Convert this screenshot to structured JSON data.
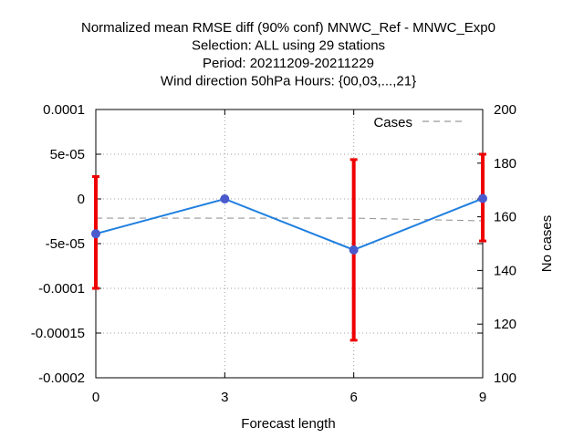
{
  "chart_data": {
    "type": "line",
    "title_lines": [
      "Normalized mean RMSE diff (90% conf) MNWC_Ref - MNWC_Exp0",
      "Selection: ALL using    29 stations",
      "Period: 20211209-20211229",
      "Wind direction 50hPa   Hours: {00,03,...,21}"
    ],
    "xlabel": "Forecast length",
    "ylabel": "",
    "y2label": "No cases",
    "x_ticks": [
      0,
      3,
      6,
      9
    ],
    "x_tick_labels": [
      "0",
      "3",
      "6",
      "9"
    ],
    "xlim": [
      0,
      9
    ],
    "ylim": [
      -0.0002,
      0.0001
    ],
    "y_ticks": [
      0.0001,
      5e-05,
      0,
      -5e-05,
      -0.0001,
      -0.00015,
      -0.0002
    ],
    "y_tick_labels": [
      "0.0001",
      "5e-05",
      "0",
      "-5e-05",
      "-0.0001",
      "-0.00015",
      "-0.0002"
    ],
    "y2lim": [
      100,
      200
    ],
    "y2_ticks": [
      200,
      180,
      160,
      140,
      120,
      100
    ],
    "y2_tick_labels": [
      "200",
      "180",
      "160",
      "140",
      "120",
      "100"
    ],
    "grid": true,
    "legend_position": "top-right",
    "series": [
      {
        "axis": "left",
        "color": "#1f7fe0",
        "marker_color": "#4a5acd",
        "x": [
          0,
          3,
          6,
          9
        ],
        "values": [
          -3.9e-05,
          0.0,
          -5.7e-05,
          5e-07
        ],
        "error_low": [
          -0.0001,
          0.0,
          -0.000158,
          -4.7e-05
        ],
        "error_high": [
          2.5e-05,
          0.0,
          4.4e-05,
          5e-05
        ],
        "error_color": "#ee0000"
      },
      {
        "name": "Cases",
        "axis": "right",
        "color": "#999999",
        "dash": true,
        "x": [
          0,
          3,
          6,
          9
        ],
        "values": [
          159.5,
          159.5,
          159.5,
          158.5
        ]
      }
    ]
  }
}
